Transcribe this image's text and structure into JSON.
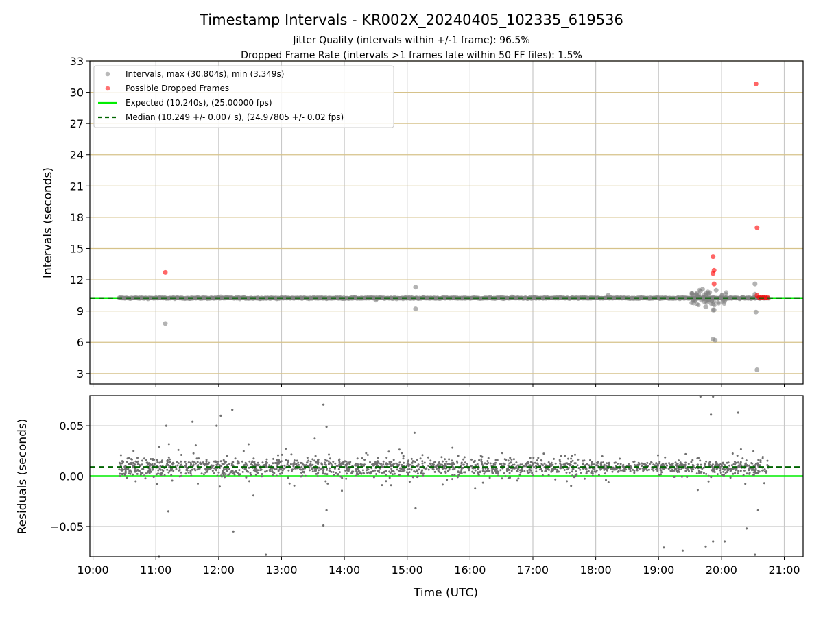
{
  "chart_data": [
    {
      "type": "scatter",
      "title": "Timestamp Intervals - KR002X_20240405_102335_619536",
      "subtitle_lines": [
        "Jitter Quality (intervals within +/-1 frame): 96.5%",
        "Dropped Frame Rate (intervals >1 frames late within 50 FF files): 1.5%"
      ],
      "ylabel": "Intervals (seconds)",
      "xlabel": "",
      "xlim": [
        "09:57",
        "21:18"
      ],
      "ylim": [
        2,
        33
      ],
      "yticks": [
        3,
        6,
        9,
        12,
        15,
        18,
        21,
        24,
        27,
        30,
        33
      ],
      "grid": true,
      "legend_position": "upper-left",
      "legend": [
        {
          "label": "Intervals, max (30.804s), min (3.349s)",
          "marker": "circle",
          "color": "#808080"
        },
        {
          "label": "Possible Dropped Frames",
          "marker": "circle",
          "color": "#ff0000"
        },
        {
          "label": "Expected (10.240s), (25.00000 fps)",
          "line": "solid",
          "color": "#00ee00"
        },
        {
          "label": "Median (10.249 +/- 0.007 s), (24.97805 +/- 0.02 fps)",
          "line": "dashed",
          "color": "#006400"
        }
      ],
      "reference_lines": {
        "expected": 10.24,
        "median": 10.249
      },
      "series": [
        {
          "name": "Intervals, max (30.804s), min (3.349s)",
          "color": "#808080",
          "continuous_band": {
            "x_start": "10:25",
            "x_end": "20:45",
            "y": 10.24,
            "spread": 0.12
          },
          "points": [
            {
              "x": "11:09",
              "y": 7.8
            },
            {
              "x": "12:02",
              "y": 10.35
            },
            {
              "x": "14:30",
              "y": 10.05
            },
            {
              "x": "15:08",
              "y": 11.3
            },
            {
              "x": "15:08",
              "y": 9.2
            },
            {
              "x": "16:40",
              "y": 10.35
            },
            {
              "x": "18:12",
              "y": 10.5
            },
            {
              "x": "19:36",
              "y": 10.6
            },
            {
              "x": "19:40",
              "y": 10.9
            },
            {
              "x": "19:42",
              "y": 11.1
            },
            {
              "x": "19:45",
              "y": 9.4
            },
            {
              "x": "19:47",
              "y": 10.7
            },
            {
              "x": "19:52",
              "y": 9.1
            },
            {
              "x": "19:53",
              "y": 9.1
            },
            {
              "x": "19:52",
              "y": 6.3
            },
            {
              "x": "19:54",
              "y": 6.2
            },
            {
              "x": "19:55",
              "y": 11.0
            },
            {
              "x": "20:32",
              "y": 11.6
            },
            {
              "x": "20:32",
              "y": 10.6
            },
            {
              "x": "20:33",
              "y": 8.9
            },
            {
              "x": "20:34",
              "y": 3.35
            }
          ]
        },
        {
          "name": "Possible Dropped Frames",
          "color": "#ff0000",
          "points": [
            {
              "x": "11:09",
              "y": 12.7
            },
            {
              "x": "19:52",
              "y": 14.2
            },
            {
              "x": "19:53",
              "y": 12.9
            },
            {
              "x": "19:52",
              "y": 12.6
            },
            {
              "x": "19:53",
              "y": 11.6
            },
            {
              "x": "20:33",
              "y": 30.8
            },
            {
              "x": "20:34",
              "y": 17.0
            },
            {
              "x": "20:34",
              "y": 10.5
            },
            {
              "x": "20:36",
              "y": 10.3
            },
            {
              "x": "20:38",
              "y": 10.3
            },
            {
              "x": "20:40",
              "y": 10.3
            },
            {
              "x": "20:42",
              "y": 10.3
            },
            {
              "x": "20:44",
              "y": 10.3
            }
          ]
        }
      ]
    },
    {
      "type": "scatter",
      "xlabel": "Time (UTC)",
      "ylabel": "Residuals (seconds)",
      "xlim": [
        "09:57",
        "21:18"
      ],
      "ylim": [
        -0.08,
        0.08
      ],
      "xticks": [
        "10:00",
        "11:00",
        "12:00",
        "13:00",
        "14:00",
        "15:00",
        "16:00",
        "17:00",
        "18:00",
        "19:00",
        "20:00",
        "21:00"
      ],
      "yticks": [
        -0.05,
        0.0,
        0.05
      ],
      "ytick_labels": [
        "−0.05",
        "0.00",
        "0.05"
      ],
      "grid": true,
      "reference_lines": {
        "expected": 0.0,
        "median": 0.009
      },
      "series": [
        {
          "name": "residuals",
          "color": "#808080",
          "band": {
            "x_start": "10:25",
            "x_end": "20:45",
            "center": 0.009,
            "spread": 0.008
          },
          "outliers": [
            {
              "x": "11:03",
              "y": -0.08
            },
            {
              "x": "11:10",
              "y": 0.05
            },
            {
              "x": "11:12",
              "y": -0.035
            },
            {
              "x": "11:35",
              "y": 0.054
            },
            {
              "x": "11:58",
              "y": 0.05
            },
            {
              "x": "12:02",
              "y": 0.06
            },
            {
              "x": "12:13",
              "y": 0.066
            },
            {
              "x": "12:14",
              "y": -0.055
            },
            {
              "x": "12:45",
              "y": -0.078
            },
            {
              "x": "13:40",
              "y": 0.071
            },
            {
              "x": "13:43",
              "y": 0.049
            },
            {
              "x": "13:43",
              "y": -0.034
            },
            {
              "x": "13:40",
              "y": -0.049
            },
            {
              "x": "15:07",
              "y": 0.043
            },
            {
              "x": "15:08",
              "y": -0.032
            },
            {
              "x": "19:05",
              "y": -0.071
            },
            {
              "x": "19:23",
              "y": -0.074
            },
            {
              "x": "19:40",
              "y": 0.079
            },
            {
              "x": "19:52",
              "y": 0.079
            },
            {
              "x": "19:50",
              "y": 0.061
            },
            {
              "x": "19:52",
              "y": -0.065
            },
            {
              "x": "19:45",
              "y": -0.07
            },
            {
              "x": "20:03",
              "y": -0.065
            },
            {
              "x": "20:16",
              "y": 0.063
            },
            {
              "x": "20:24",
              "y": -0.052
            },
            {
              "x": "20:32",
              "y": -0.078
            },
            {
              "x": "20:35",
              "y": -0.034
            }
          ]
        }
      ]
    }
  ]
}
